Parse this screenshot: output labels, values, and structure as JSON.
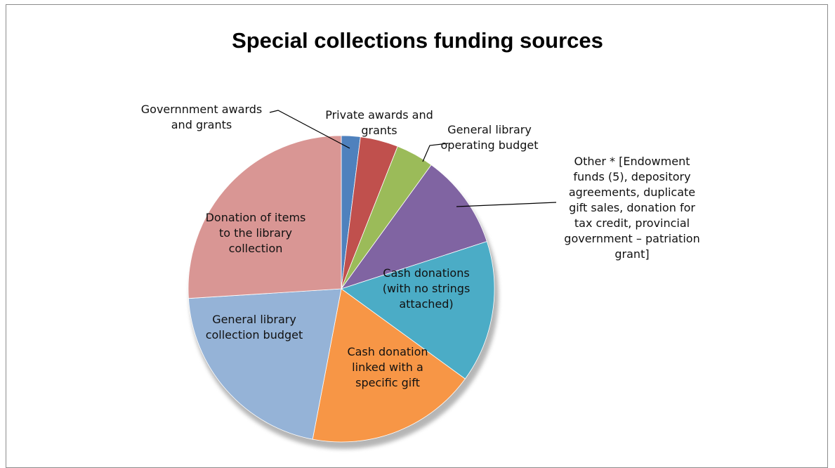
{
  "chart_data": {
    "type": "pie",
    "title": "Special collections funding sources",
    "categories": [
      "Governnment awards and grants",
      "Private awards and grants",
      "General library operating budget",
      "Other * [Endowment funds (5), depository agreements, duplicate gift sales, donation for tax credit, provincial government – patriation grant]",
      "Cash donations (with no strings attached)",
      "Cash donation linked with a specific gift",
      "General library collection budget",
      "Donation of items to the library collection"
    ],
    "values": [
      2,
      4,
      4,
      10,
      15,
      18,
      21,
      26
    ],
    "colors": [
      "#4f81bd",
      "#c0504d",
      "#9bbb59",
      "#8064a2",
      "#4bacc6",
      "#f79646",
      "#95b3d7",
      "#d99694"
    ],
    "labels": [
      [
        "Governnment awards",
        "and grants"
      ],
      [
        "Private awards and",
        "grants"
      ],
      [
        "General library",
        "operating budget"
      ],
      [
        "Other *   [Endowment",
        "funds (5), depository",
        "agreements, duplicate",
        "gift sales, donation for",
        "tax credit, provincial",
        "government – patriation",
        "grant]"
      ],
      [
        "Cash donations",
        "(with no strings",
        "attached)"
      ],
      [
        "Cash donation",
        "linked with a",
        "specific gift"
      ],
      [
        "General library",
        "collection budget"
      ],
      [
        "Donation of items",
        "to the library",
        "collection"
      ]
    ],
    "legend": "none"
  }
}
